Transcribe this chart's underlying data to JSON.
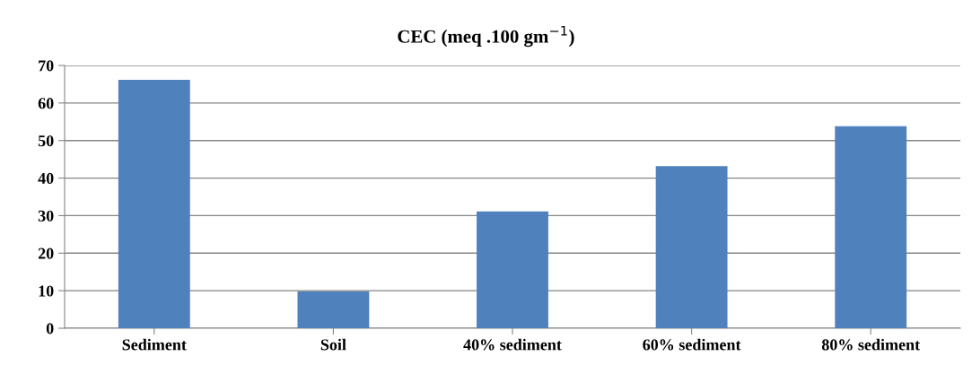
{
  "chart_data": {
    "type": "bar",
    "title": "CEC (meq .100 gm$^{−1}$)",
    "categories": [
      "Sediment",
      "Soil",
      "40% sediment",
      "60% sediment",
      "80% sediment"
    ],
    "values": [
      66.2,
      9.8,
      31.1,
      43.2,
      53.8
    ],
    "color": "#4f81bd",
    "ylim": [
      0,
      70
    ],
    "yticks": [
      0,
      10,
      20,
      30,
      40,
      50,
      60,
      70
    ],
    "grid": "y",
    "legend": false
  }
}
